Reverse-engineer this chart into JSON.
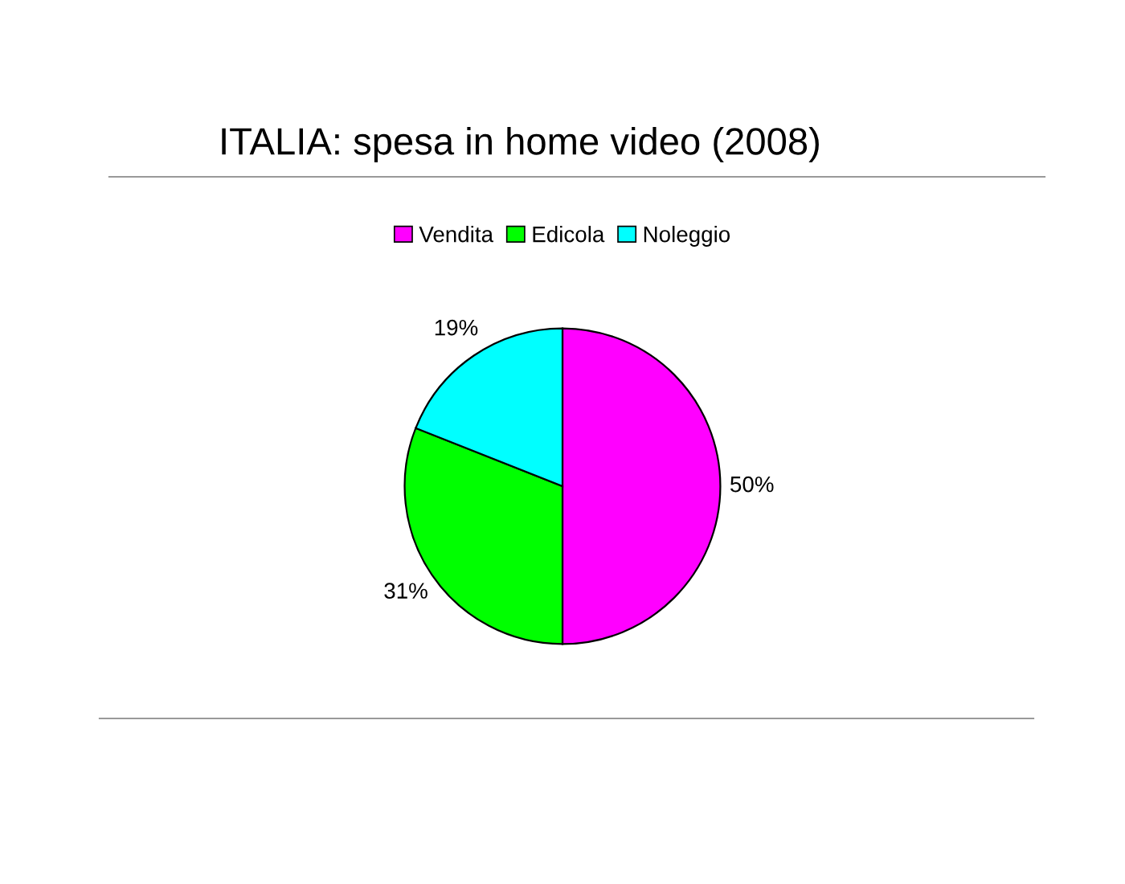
{
  "chart_data": {
    "type": "pie",
    "title": "ITALIA: spesa in home video (2008)",
    "categories": [
      "Vendita",
      "Edicola",
      "Noleggio"
    ],
    "values": [
      50,
      31,
      19
    ],
    "colors": [
      "#ff00ff",
      "#00ff00",
      "#00ffff"
    ],
    "value_labels": [
      "50%",
      "31%",
      "19%"
    ],
    "legend": "top"
  }
}
